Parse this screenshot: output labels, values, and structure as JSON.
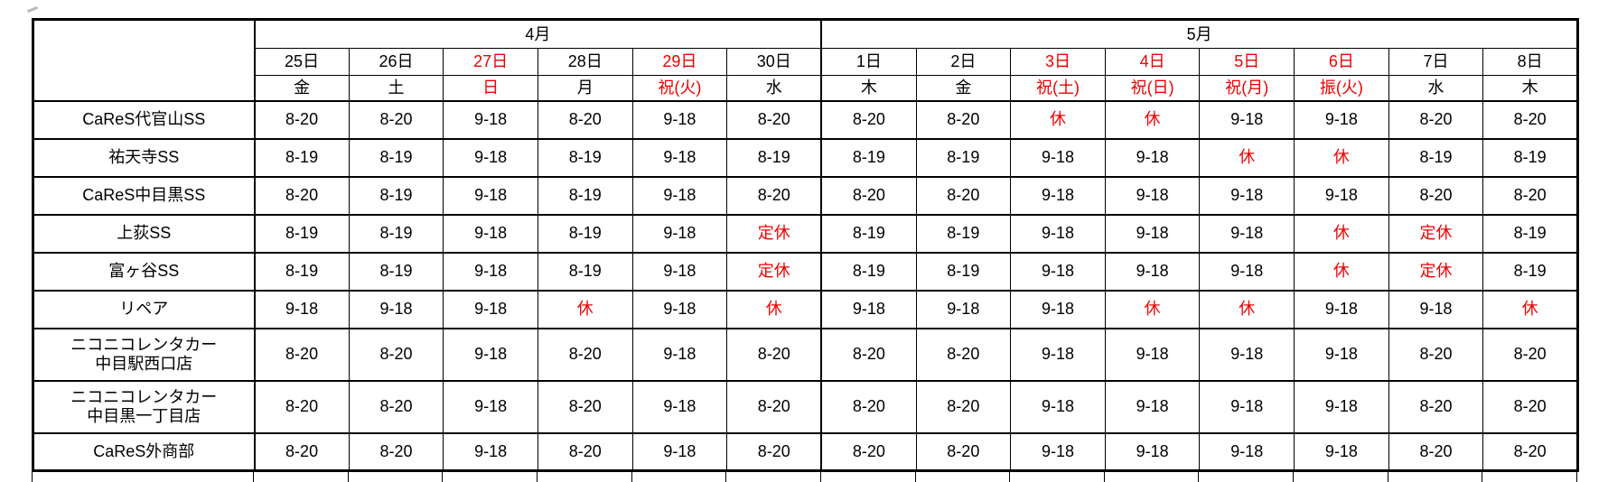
{
  "colors": {
    "holiday_red": "#ee0000",
    "text": "#000000",
    "border": "#000000",
    "background": "#ffffff"
  },
  "table": {
    "months": [
      {
        "label": "4月",
        "colspan": 6
      },
      {
        "label": "5月",
        "colspan": 8
      }
    ],
    "columns": [
      {
        "date": "25日",
        "dow": "金",
        "holiday": false
      },
      {
        "date": "26日",
        "dow": "土",
        "holiday": false
      },
      {
        "date": "27日",
        "dow": "日",
        "holiday": true
      },
      {
        "date": "28日",
        "dow": "月",
        "holiday": false
      },
      {
        "date": "29日",
        "dow": "祝(火)",
        "holiday": true
      },
      {
        "date": "30日",
        "dow": "水",
        "holiday": false
      },
      {
        "date": "1日",
        "dow": "木",
        "holiday": false
      },
      {
        "date": "2日",
        "dow": "金",
        "holiday": false
      },
      {
        "date": "3日",
        "dow": "祝(土)",
        "holiday": true
      },
      {
        "date": "4日",
        "dow": "祝(日)",
        "holiday": true
      },
      {
        "date": "5日",
        "dow": "祝(月)",
        "holiday": true
      },
      {
        "date": "6日",
        "dow": "振(火)",
        "holiday": true
      },
      {
        "date": "7日",
        "dow": "水",
        "holiday": false
      },
      {
        "date": "8日",
        "dow": "木",
        "holiday": false
      }
    ],
    "closed_values": [
      "休",
      "定休"
    ],
    "rows": [
      {
        "name_lines": [
          "CaReS代官山SS"
        ],
        "hours": [
          "8-20",
          "8-20",
          "9-18",
          "8-20",
          "9-18",
          "8-20",
          "8-20",
          "8-20",
          "休",
          "休",
          "9-18",
          "9-18",
          "8-20",
          "8-20"
        ]
      },
      {
        "name_lines": [
          "祐天寺SS"
        ],
        "hours": [
          "8-19",
          "8-19",
          "9-18",
          "8-19",
          "9-18",
          "8-19",
          "8-19",
          "8-19",
          "9-18",
          "9-18",
          "休",
          "休",
          "8-19",
          "8-19"
        ]
      },
      {
        "name_lines": [
          "CaReS中目黒SS"
        ],
        "hours": [
          "8-20",
          "8-19",
          "9-18",
          "8-19",
          "9-18",
          "8-20",
          "8-20",
          "8-20",
          "9-18",
          "9-18",
          "9-18",
          "9-18",
          "8-20",
          "8-20"
        ]
      },
      {
        "name_lines": [
          "上荻SS"
        ],
        "hours": [
          "8-19",
          "8-19",
          "9-18",
          "8-19",
          "9-18",
          "定休",
          "8-19",
          "8-19",
          "9-18",
          "9-18",
          "9-18",
          "休",
          "定休",
          "8-19"
        ]
      },
      {
        "name_lines": [
          "富ヶ谷SS"
        ],
        "hours": [
          "8-19",
          "8-19",
          "9-18",
          "8-19",
          "9-18",
          "定休",
          "8-19",
          "8-19",
          "9-18",
          "9-18",
          "9-18",
          "休",
          "定休",
          "8-19"
        ]
      },
      {
        "name_lines": [
          "リペア"
        ],
        "hours": [
          "9-18",
          "9-18",
          "9-18",
          "休",
          "9-18",
          "休",
          "9-18",
          "9-18",
          "9-18",
          "休",
          "休",
          "9-18",
          "9-18",
          "休"
        ]
      },
      {
        "name_lines": [
          "ニコニコレンタカー",
          "中目駅西口店"
        ],
        "hours": [
          "8-20",
          "8-20",
          "9-18",
          "8-20",
          "9-18",
          "8-20",
          "8-20",
          "8-20",
          "9-18",
          "9-18",
          "9-18",
          "9-18",
          "8-20",
          "8-20"
        ]
      },
      {
        "name_lines": [
          "ニコニコレンタカー",
          "中目黒一丁目店"
        ],
        "hours": [
          "8-20",
          "8-20",
          "9-18",
          "8-20",
          "9-18",
          "8-20",
          "8-20",
          "8-20",
          "9-18",
          "9-18",
          "9-18",
          "9-18",
          "8-20",
          "8-20"
        ]
      },
      {
        "name_lines": [
          "CaReS外商部"
        ],
        "hours": [
          "8-20",
          "8-20",
          "9-18",
          "8-20",
          "9-18",
          "8-20",
          "8-20",
          "8-20",
          "9-18",
          "9-18",
          "9-18",
          "9-18",
          "8-20",
          "8-20"
        ]
      }
    ]
  }
}
